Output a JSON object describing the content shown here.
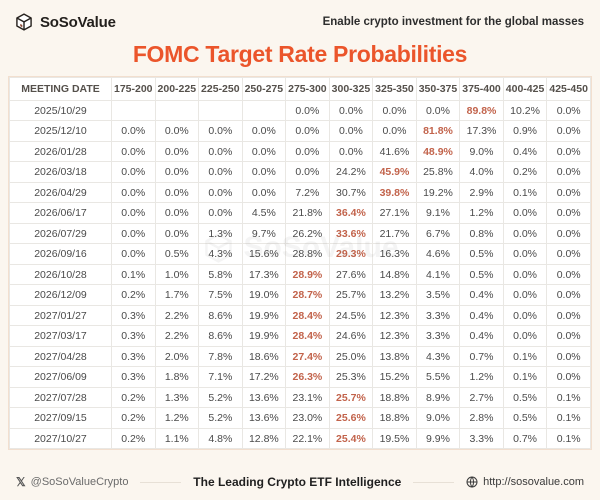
{
  "brand": {
    "name": "SoSoValue",
    "tagline": "Enable crypto investment for the global masses"
  },
  "title": "FOMC Target Rate Probabilities",
  "colors": {
    "accent": "#EB552B",
    "highlight": "#C2634B",
    "page_bg": "#FBF6EF"
  },
  "watermark": "SoSoValue",
  "footer": {
    "twitter_handle": "@SoSoValueCrypto",
    "center_text": "The Leading Crypto ETF Intelligence",
    "website_url": "http://sosovalue.com"
  },
  "chart_data": {
    "type": "table",
    "title": "FOMC Target Rate Probabilities",
    "columns": [
      "MEETING DATE",
      "175-200",
      "200-225",
      "225-250",
      "250-275",
      "275-300",
      "300-325",
      "325-350",
      "350-375",
      "375-400",
      "400-425",
      "425-450"
    ],
    "rows": [
      {
        "date": "2025/10/29",
        "values": [
          "",
          "",
          "",
          "",
          "0.0%",
          "0.0%",
          "0.0%",
          "0.0%",
          "89.8%",
          "10.2%",
          "0.0%"
        ],
        "highlight": 8
      },
      {
        "date": "2025/12/10",
        "values": [
          "0.0%",
          "0.0%",
          "0.0%",
          "0.0%",
          "0.0%",
          "0.0%",
          "0.0%",
          "81.8%",
          "17.3%",
          "0.9%",
          "0.0%"
        ],
        "highlight": 7
      },
      {
        "date": "2026/01/28",
        "values": [
          "0.0%",
          "0.0%",
          "0.0%",
          "0.0%",
          "0.0%",
          "0.0%",
          "41.6%",
          "48.9%",
          "9.0%",
          "0.4%",
          "0.0%"
        ],
        "highlight": 7
      },
      {
        "date": "2026/03/18",
        "values": [
          "0.0%",
          "0.0%",
          "0.0%",
          "0.0%",
          "0.0%",
          "24.2%",
          "45.9%",
          "25.8%",
          "4.0%",
          "0.2%",
          "0.0%"
        ],
        "highlight": 6
      },
      {
        "date": "2026/04/29",
        "values": [
          "0.0%",
          "0.0%",
          "0.0%",
          "0.0%",
          "7.2%",
          "30.7%",
          "39.8%",
          "19.2%",
          "2.9%",
          "0.1%",
          "0.0%"
        ],
        "highlight": 6
      },
      {
        "date": "2026/06/17",
        "values": [
          "0.0%",
          "0.0%",
          "0.0%",
          "4.5%",
          "21.8%",
          "36.4%",
          "27.1%",
          "9.1%",
          "1.2%",
          "0.0%",
          "0.0%"
        ],
        "highlight": 5
      },
      {
        "date": "2026/07/29",
        "values": [
          "0.0%",
          "0.0%",
          "1.3%",
          "9.7%",
          "26.2%",
          "33.6%",
          "21.7%",
          "6.7%",
          "0.8%",
          "0.0%",
          "0.0%"
        ],
        "highlight": 5
      },
      {
        "date": "2026/09/16",
        "values": [
          "0.0%",
          "0.5%",
          "4.3%",
          "15.6%",
          "28.8%",
          "29.3%",
          "16.3%",
          "4.6%",
          "0.5%",
          "0.0%",
          "0.0%"
        ],
        "highlight": 5
      },
      {
        "date": "2026/10/28",
        "values": [
          "0.1%",
          "1.0%",
          "5.8%",
          "17.3%",
          "28.9%",
          "27.6%",
          "14.8%",
          "4.1%",
          "0.5%",
          "0.0%",
          "0.0%"
        ],
        "highlight": 4
      },
      {
        "date": "2026/12/09",
        "values": [
          "0.2%",
          "1.7%",
          "7.5%",
          "19.0%",
          "28.7%",
          "25.7%",
          "13.2%",
          "3.5%",
          "0.4%",
          "0.0%",
          "0.0%"
        ],
        "highlight": 4
      },
      {
        "date": "2027/01/27",
        "values": [
          "0.3%",
          "2.2%",
          "8.6%",
          "19.9%",
          "28.4%",
          "24.5%",
          "12.3%",
          "3.3%",
          "0.4%",
          "0.0%",
          "0.0%"
        ],
        "highlight": 4
      },
      {
        "date": "2027/03/17",
        "values": [
          "0.3%",
          "2.2%",
          "8.6%",
          "19.9%",
          "28.4%",
          "24.6%",
          "12.3%",
          "3.3%",
          "0.4%",
          "0.0%",
          "0.0%"
        ],
        "highlight": 4
      },
      {
        "date": "2027/04/28",
        "values": [
          "0.3%",
          "2.0%",
          "7.8%",
          "18.6%",
          "27.4%",
          "25.0%",
          "13.8%",
          "4.3%",
          "0.7%",
          "0.1%",
          "0.0%"
        ],
        "highlight": 4
      },
      {
        "date": "2027/06/09",
        "values": [
          "0.3%",
          "1.8%",
          "7.1%",
          "17.2%",
          "26.3%",
          "25.3%",
          "15.2%",
          "5.5%",
          "1.2%",
          "0.1%",
          "0.0%"
        ],
        "highlight": 4
      },
      {
        "date": "2027/07/28",
        "values": [
          "0.2%",
          "1.3%",
          "5.2%",
          "13.6%",
          "23.1%",
          "25.7%",
          "18.8%",
          "8.9%",
          "2.7%",
          "0.5%",
          "0.1%"
        ],
        "highlight": 5
      },
      {
        "date": "2027/09/15",
        "values": [
          "0.2%",
          "1.2%",
          "5.2%",
          "13.6%",
          "23.0%",
          "25.6%",
          "18.8%",
          "9.0%",
          "2.8%",
          "0.5%",
          "0.1%"
        ],
        "highlight": 5
      },
      {
        "date": "2027/10/27",
        "values": [
          "0.2%",
          "1.1%",
          "4.8%",
          "12.8%",
          "22.1%",
          "25.4%",
          "19.5%",
          "9.9%",
          "3.3%",
          "0.7%",
          "0.1%"
        ],
        "highlight": 5
      }
    ]
  }
}
